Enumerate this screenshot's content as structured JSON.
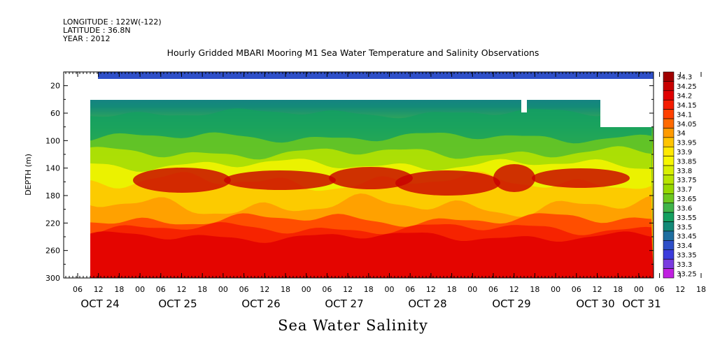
{
  "meta": {
    "longitude": "LONGITUDE : 122W(-122)",
    "latitude": "LATITUDE : 36.8N",
    "year": "YEAR : 2012"
  },
  "chart_data": {
    "type": "heatmap",
    "title": "Hourly Gridded MBARI Mooring M1 Sea Water Temperature and Salinity Observations",
    "xlabel": "Sea Water Salinity",
    "ylabel": "DEPTH (m)",
    "y_ticks": [
      20,
      60,
      100,
      140,
      180,
      220,
      260,
      300
    ],
    "ylim": [
      300,
      0
    ],
    "x_hour_ticks": [
      "06",
      "12",
      "18",
      "00",
      "06",
      "12",
      "18",
      "00",
      "06",
      "12",
      "18",
      "00",
      "06",
      "12",
      "18",
      "00",
      "06",
      "12",
      "18",
      "00",
      "06",
      "12",
      "18",
      "00",
      "06",
      "12",
      "18",
      "00",
      "06",
      "12",
      "18",
      "00"
    ],
    "x_day_labels": [
      "OCT 24",
      "OCT 25",
      "OCT 26",
      "OCT 27",
      "OCT 28",
      "OCT 29",
      "OCT 30",
      "OCT 31"
    ],
    "colorbar": {
      "levels": [
        "34.3",
        "34.25",
        "34.2",
        "34.15",
        "34.1",
        "34.05",
        "34",
        "33.95",
        "33.9",
        "33.85",
        "33.8",
        "33.75",
        "33.7",
        "33.65",
        "33.6",
        "33.55",
        "33.5",
        "33.45",
        "33.4",
        "33.35",
        "33.3",
        "33.25"
      ],
      "colors": [
        "#a00000",
        "#c80000",
        "#e00000",
        "#f51c00",
        "#ff4000",
        "#ff6a00",
        "#ff9a00",
        "#ffc400",
        "#ffe800",
        "#f6f600",
        "#d8ef00",
        "#b8e400",
        "#96d800",
        "#6cc820",
        "#3fb44a",
        "#14a060",
        "#138a78",
        "#1e6ea0",
        "#2e4fc8",
        "#3c3cdc",
        "#7a3ce0",
        "#c020e0"
      ]
    },
    "depth_profile": [
      {
        "depth_m": 10,
        "salinity": 33.45
      },
      {
        "depth_m": 50,
        "salinity": 33.5
      },
      {
        "depth_m": 80,
        "salinity": 33.6
      },
      {
        "depth_m": 110,
        "salinity": 33.7
      },
      {
        "depth_m": 130,
        "salinity": 33.8
      },
      {
        "depth_m": 160,
        "salinity": 33.9
      },
      {
        "depth_m": 200,
        "salinity": 34.0
      },
      {
        "depth_m": 220,
        "salinity": 34.1
      },
      {
        "depth_m": 250,
        "salinity": 34.25
      },
      {
        "depth_m": 290,
        "salinity": 34.2
      }
    ],
    "grid": false
  }
}
